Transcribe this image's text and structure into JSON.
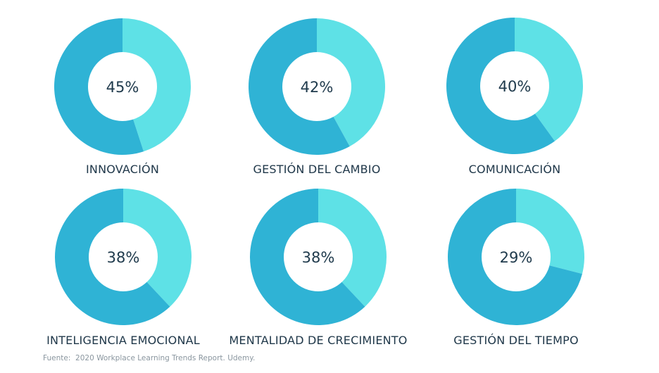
{
  "colors": {
    "primary": "#2fb3d5",
    "highlight": "#5ee1e6",
    "hole": "#ffffff",
    "text": "#20384a",
    "source_text": "#8a969f"
  },
  "chart_data": [
    {
      "type": "pie",
      "variant": "donut",
      "label": "INNOVACIÓN",
      "value": 45,
      "value_label": "45%",
      "slices": [
        {
          "name": "INNOVACIÓN",
          "value": 45,
          "color": "#5ee1e6"
        },
        {
          "name": "",
          "value": 55,
          "color": "#2fb3d5"
        }
      ]
    },
    {
      "type": "pie",
      "variant": "donut",
      "label": "GESTIÓN DEL CAMBIO",
      "value": 42,
      "value_label": "42%",
      "slices": [
        {
          "name": "GESTIÓN DEL CAMBIO",
          "value": 42,
          "color": "#5ee1e6"
        },
        {
          "name": "",
          "value": 58,
          "color": "#2fb3d5"
        }
      ]
    },
    {
      "type": "pie",
      "variant": "donut",
      "label": "COMUNICACIÓN",
      "value": 40,
      "value_label": "40%",
      "slices": [
        {
          "name": "COMUNICACIÓN",
          "value": 40,
          "color": "#5ee1e6"
        },
        {
          "name": "",
          "value": 60,
          "color": "#2fb3d5"
        }
      ]
    },
    {
      "type": "pie",
      "variant": "donut",
      "label": "INTELIGENCIA EMOCIONAL",
      "value": 38,
      "value_label": "38%",
      "slices": [
        {
          "name": "INTELIGENCIA EMOCIONAL",
          "value": 38,
          "color": "#5ee1e6"
        },
        {
          "name": "",
          "value": 62,
          "color": "#2fb3d5"
        }
      ]
    },
    {
      "type": "pie",
      "variant": "donut",
      "label": "MENTALIDAD DE CRECIMIENTO",
      "value": 38,
      "value_label": "38%",
      "slices": [
        {
          "name": "MENTALIDAD DE CRECIMIENTO",
          "value": 38,
          "color": "#5ee1e6"
        },
        {
          "name": "",
          "value": 62,
          "color": "#2fb3d5"
        }
      ]
    },
    {
      "type": "pie",
      "variant": "donut",
      "label": "GESTIÓN DEL TIEMPO",
      "value": 29,
      "value_label": "29%",
      "slices": [
        {
          "name": "GESTIÓN DEL TIEMPO",
          "value": 29,
          "color": "#5ee1e6"
        },
        {
          "name": "",
          "value": 71,
          "color": "#2fb3d5"
        }
      ]
    }
  ],
  "source": "Fuente:  2020 Workplace Learning Trends Report. Udemy."
}
